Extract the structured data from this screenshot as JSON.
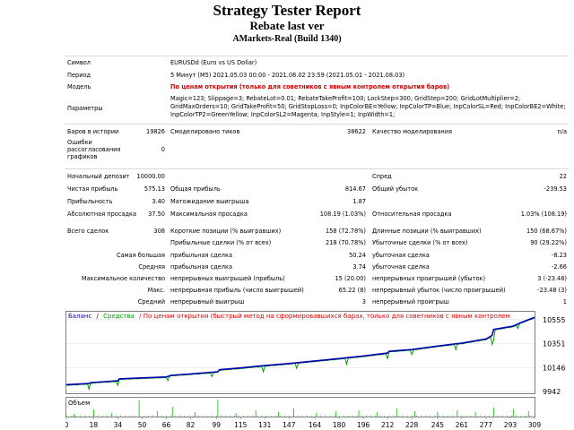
{
  "header": {
    "title": "Strategy Tester Report",
    "subtitle": "Rebate last ver",
    "build": "AMarkets-Real (Build 1340)"
  },
  "info": {
    "symbol_label": "Символ",
    "symbol_value": "EURUSDd (Euro vs US Dollar)",
    "period_label": "Период",
    "period_value": "5 Минут (M5) 2021.05.03 00:00 - 2021.08.02 23:59 (2021.05.01 - 2021.08.03)",
    "model_label": "Модель",
    "model_value": "По ценам открытия (только для советников с явным контролем открытия баров)",
    "params_label": "Параметры",
    "params_lines": [
      "Magic=123; Slippage=3; RebateLot=0.01; RebateTakeProfit=100; LockStep=300; GridStep=200; GridLotMultiplier=2;",
      "GridMaxOrders=10; GridTakeProfit=50; GridStopLoss=0; InpColorBE=Yellow; InpColorTP=Blue; InpColorSL=Red; InpColorBE2=White;",
      "InpColorTP2=GreenYellow; InpColorSL2=Magenta; InpStyle=1; InpWidth=1;"
    ]
  },
  "bars": {
    "bars_label": "Баров в истории",
    "bars_value": "19826",
    "ticks_label": "Смоделировано тиков",
    "ticks_value": "38622",
    "quality_label": "Качество моделирования",
    "quality_value": "n/a",
    "errors_label_lines": [
      "Ошибки",
      "рассогласования",
      "графиков"
    ],
    "errors_value": "0"
  },
  "stats": {
    "deposit_label": "Начальный депозит",
    "deposit_value": "10000.00",
    "spread_label": "Спред",
    "spread_value": "22",
    "net_label": "Чистая прибыль",
    "net_value": "575.13",
    "gross_profit_label": "Общая прибыль",
    "gross_profit_value": "814.67",
    "gross_loss_label": "Общий убыток",
    "gross_loss_value": "-239.53",
    "pf_label": "Прибыльность",
    "pf_value": "3.40",
    "payoff_label": "Матожидание выигрыша",
    "payoff_value": "1.87",
    "abs_dd_label": "Абсолютная просадка",
    "abs_dd_value": "37.50",
    "max_dd_label": "Максимальная просадка",
    "max_dd_value": "108.19 (1.03%)",
    "rel_dd_label": "Относительная просадка",
    "rel_dd_value": "1.03% (108.19)",
    "total_label": "Всего сделок",
    "total_value": "308",
    "short_label": "Короткие позиции (% выигравших)",
    "short_value": "158 (72.78%)",
    "long_label": "Длинные позиции (% выигравших)",
    "long_value": "150 (68.67%)",
    "profit_trades_label": "Прибыльные сделки (% от всех)",
    "profit_trades_value": "218 (70.78%)",
    "loss_trades_label": "Убыточные сделки (% от всех)",
    "loss_trades_value": "90 (29.22%)",
    "largest_label": "Самая большая",
    "largest_profit_label": "прибыльная сделка",
    "largest_profit_value": "50.24",
    "largest_loss_label": "убыточная сделка",
    "largest_loss_value": "-8.23",
    "average_label": "Средняя",
    "avg_profit_label": "прибыльная сделка",
    "avg_profit_value": "3.74",
    "avg_loss_label": "убыточная сделка",
    "avg_loss_value": "-2.66",
    "max_label": "Максимальное количество",
    "max_wins_label": "непрерывных выигрышей (прибыль)",
    "max_wins_value": "15 (20.00)",
    "max_losses_label": "непрерывных проигрышей (убыток)",
    "max_losses_value": "3 (-23.48)",
    "maximal_label": "Макс.",
    "maxi_profit_label": "непрерывная прибыль (число выигрышей)",
    "maxi_profit_value": "65.22 (8)",
    "maxi_loss_label": "непрерывный убыток (число проигрышей)",
    "maxi_loss_value": "-23.48 (3)",
    "avg_cons_label": "Средний",
    "avg_wins_label": "непрерывный выигрыш",
    "avg_wins_value": "3",
    "avg_losses_label": "непрерывный проигрыш",
    "avg_losses_value": "1"
  },
  "colors": {
    "balance": "#0000b4",
    "equity": "#00a000",
    "volume": "#00c000",
    "red_text": "#d40000"
  },
  "chart_data": {
    "type": "line",
    "legend": {
      "balance": "Баланс",
      "divider": "/",
      "equity": "Средства",
      "note": "/ По ценам открытия (быстрый метод на сформировавшихся барах, только для советников с явным контролем"
    },
    "volume_label": "Объем",
    "y_ticks": [
      "10555",
      "10351",
      "10146",
      "9942"
    ],
    "y_tick_values": [
      10555,
      10351,
      10146,
      9942
    ],
    "ylim": [
      9942,
      10600
    ],
    "x_ticks": [
      "0",
      "18",
      "34",
      "50",
      "66",
      "82",
      "99",
      "115",
      "131",
      "147",
      "164",
      "180",
      "196",
      "212",
      "228",
      "245",
      "261",
      "277",
      "293",
      "309"
    ],
    "x_tick_values": [
      0,
      18,
      34,
      50,
      66,
      82,
      99,
      115,
      131,
      147,
      164,
      180,
      196,
      212,
      228,
      245,
      261,
      277,
      293,
      309
    ],
    "xlim": [
      0,
      309
    ],
    "balance": [
      [
        0,
        10000
      ],
      [
        15,
        10010
      ],
      [
        16,
        10018
      ],
      [
        30,
        10030
      ],
      [
        34,
        10033
      ],
      [
        35,
        10050
      ],
      [
        50,
        10058
      ],
      [
        66,
        10066
      ],
      [
        69,
        10080
      ],
      [
        82,
        10092
      ],
      [
        100,
        10110
      ],
      [
        101,
        10128
      ],
      [
        115,
        10143
      ],
      [
        131,
        10163
      ],
      [
        147,
        10181
      ],
      [
        164,
        10203
      ],
      [
        180,
        10223
      ],
      [
        196,
        10245
      ],
      [
        212,
        10270
      ],
      [
        213,
        10285
      ],
      [
        228,
        10300
      ],
      [
        245,
        10330
      ],
      [
        261,
        10355
      ],
      [
        277,
        10390
      ],
      [
        281,
        10420
      ],
      [
        282,
        10472
      ],
      [
        295,
        10500
      ],
      [
        300,
        10530
      ],
      [
        309,
        10575
      ]
    ],
    "equity_dips": [
      [
        15,
        9960
      ],
      [
        34,
        9995
      ],
      [
        67,
        10035
      ],
      [
        96,
        10070
      ],
      [
        130,
        10110
      ],
      [
        152,
        10140
      ],
      [
        185,
        10175
      ],
      [
        212,
        10220
      ],
      [
        228,
        10258
      ],
      [
        257,
        10300
      ],
      [
        281,
        10345
      ],
      [
        282,
        10380
      ],
      [
        298,
        10480
      ]
    ],
    "volume_spikes": [
      [
        5,
        0.15
      ],
      [
        18,
        0.4
      ],
      [
        30,
        0.2
      ],
      [
        48,
        0.9
      ],
      [
        60,
        0.3
      ],
      [
        70,
        0.55
      ],
      [
        85,
        0.25
      ],
      [
        100,
        0.95
      ],
      [
        112,
        0.2
      ],
      [
        125,
        0.35
      ],
      [
        140,
        0.25
      ],
      [
        150,
        0.45
      ],
      [
        165,
        0.2
      ],
      [
        178,
        0.3
      ],
      [
        193,
        0.35
      ],
      [
        205,
        0.25
      ],
      [
        218,
        0.45
      ],
      [
        230,
        0.3
      ],
      [
        245,
        0.25
      ],
      [
        258,
        0.35
      ],
      [
        270,
        0.25
      ],
      [
        282,
        0.5
      ],
      [
        295,
        0.4
      ],
      [
        305,
        0.3
      ]
    ]
  }
}
